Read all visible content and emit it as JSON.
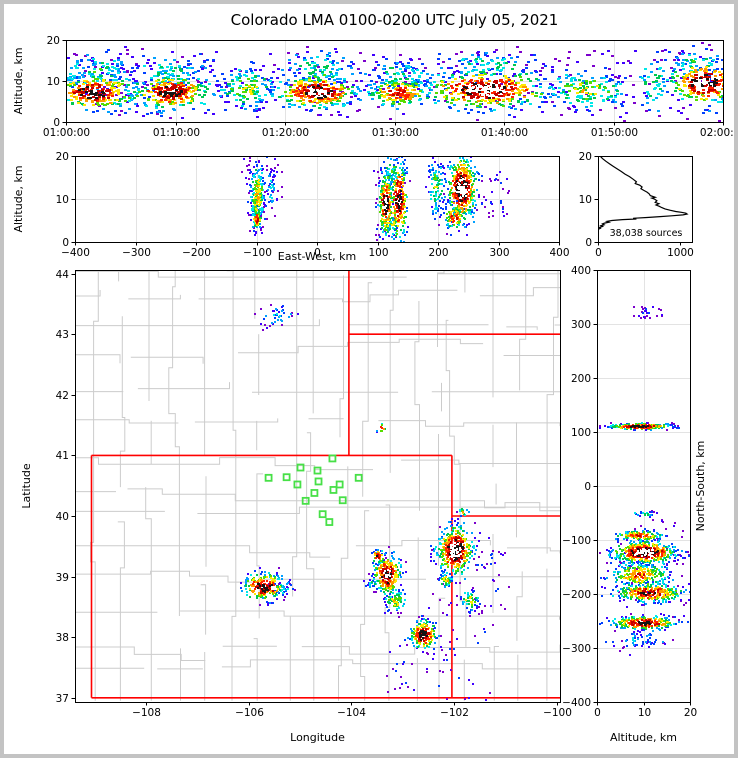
{
  "chart_data": {
    "type": "scatter",
    "title": "Colorado LMA 0100-0200 UTC July 05, 2021",
    "colormap": [
      "#7b00cc",
      "#3f00ff",
      "#0040ff",
      "#00a0ff",
      "#00e8e8",
      "#00c850",
      "#55dd00",
      "#ffe800",
      "#ff9900",
      "#ff2200",
      "#c40000",
      "#141414",
      "#ffffff"
    ],
    "cluster_format": "[center_x, center_y, sigma_x, sigma_y, n_points, peak_density]",
    "panels": {
      "time_height": {
        "type": "scatter-density",
        "ylabel": "Altitude, km",
        "x_range": [
          60,
          120
        ],
        "y_range": [
          0,
          20
        ],
        "x_tick_values": [
          60,
          70,
          80,
          90,
          100,
          110,
          120
        ],
        "x_tick_labels": [
          "01:00:00",
          "01:10:00",
          "01:20:00",
          "01:30:00",
          "01:40:00",
          "01:50:00",
          "02:00:00"
        ],
        "y_tick_values": [
          0,
          10,
          20
        ],
        "y_tick_labels": [
          "0",
          "10",
          "20"
        ],
        "clusters": [
          [
            62.5,
            7.5,
            1.9,
            2.2,
            300,
            0.95
          ],
          [
            62.5,
            12.5,
            2.0,
            2.4,
            130,
            0.4
          ],
          [
            69.5,
            7.5,
            1.8,
            2.2,
            290,
            0.92
          ],
          [
            69.5,
            12.5,
            1.9,
            2.3,
            110,
            0.4
          ],
          [
            76.5,
            8.5,
            1.4,
            2.6,
            150,
            0.55
          ],
          [
            82.8,
            7.6,
            1.8,
            2.0,
            320,
            0.97
          ],
          [
            82.8,
            13.0,
            1.9,
            2.4,
            110,
            0.42
          ],
          [
            90.3,
            7.3,
            1.5,
            1.8,
            190,
            0.8
          ],
          [
            90.3,
            12.0,
            1.6,
            2.2,
            80,
            0.4
          ],
          [
            98.3,
            8.2,
            2.9,
            2.4,
            400,
            0.97
          ],
          [
            98.5,
            14.0,
            2.6,
            2.0,
            110,
            0.4
          ],
          [
            107.5,
            8.0,
            2.0,
            2.4,
            170,
            0.55
          ],
          [
            113.5,
            9.5,
            0.9,
            3.2,
            60,
            0.45
          ],
          [
            118.2,
            9.8,
            1.6,
            2.6,
            250,
            0.97
          ],
          [
            117.5,
            14.5,
            1.4,
            1.8,
            60,
            0.4
          ],
          [
            90.0,
            9.0,
            16.0,
            4.2,
            160,
            0.13
          ]
        ]
      },
      "east_west": {
        "type": "scatter-density",
        "xlabel": "East-West, km",
        "ylabel": "Altitude, km",
        "x_range": [
          -400,
          400
        ],
        "y_range": [
          0,
          20
        ],
        "x_tick_values": [
          -400,
          -300,
          -200,
          -100,
          0,
          100,
          200,
          300,
          400
        ],
        "x_tick_labels": [
          "−400",
          "−300",
          "−200",
          "−100",
          "0",
          "100",
          "200",
          "300",
          "400"
        ],
        "y_tick_values": [
          0,
          10,
          20
        ],
        "y_tick_labels": [
          "0",
          "10",
          "20"
        ],
        "clusters": [
          [
            -100,
            11,
            6,
            4,
            240,
            0.62
          ],
          [
            -101,
            5.5,
            4,
            1.1,
            70,
            0.8
          ],
          [
            -78,
            12.5,
            5,
            2.5,
            40,
            0.3
          ],
          [
            -92,
            13,
            16,
            3.5,
            45,
            0.15
          ],
          [
            112,
            9,
            5.5,
            3.5,
            250,
            0.98
          ],
          [
            134,
            10,
            7,
            4.5,
            250,
            0.95
          ],
          [
            122,
            16.5,
            11,
            2,
            70,
            0.45
          ],
          [
            120,
            4.5,
            9,
            1,
            40,
            0.6
          ],
          [
            196,
            13,
            7,
            3.8,
            110,
            0.5
          ],
          [
            238,
            12.5,
            12,
            3.8,
            500,
            1.0
          ],
          [
            226,
            6,
            9,
            1.4,
            90,
            0.8
          ],
          [
            296,
            11,
            10,
            2.5,
            30,
            0.18
          ]
        ]
      },
      "altitude_histogram": {
        "type": "line",
        "annotation": "38,038 sources",
        "x_range": [
          0,
          1150
        ],
        "y_range": [
          0,
          20
        ],
        "x_tick_values": [
          0,
          1000
        ],
        "x_tick_labels": [
          "0",
          "1000"
        ],
        "y_tick_values": [
          0,
          10,
          20
        ],
        "y_tick_labels": [
          "0",
          "10",
          "20"
        ],
        "profile_alt_count": [
          [
            20,
            25
          ],
          [
            19.4,
            55
          ],
          [
            18.8,
            95
          ],
          [
            18.2,
            140
          ],
          [
            17.6,
            185
          ],
          [
            17,
            235
          ],
          [
            16.4,
            285
          ],
          [
            15.8,
            330
          ],
          [
            15.2,
            385
          ],
          [
            14.6,
            430
          ],
          [
            14,
            470
          ],
          [
            13.6,
            455
          ],
          [
            13.2,
            510
          ],
          [
            12.8,
            540
          ],
          [
            12.4,
            525
          ],
          [
            12,
            560
          ],
          [
            11.6,
            600
          ],
          [
            11.2,
            625
          ],
          [
            10.8,
            640
          ],
          [
            10.4,
            700
          ],
          [
            10.2,
            660
          ],
          [
            10,
            690
          ],
          [
            9.6,
            720
          ],
          [
            9.2,
            700
          ],
          [
            8.9,
            745
          ],
          [
            8.6,
            710
          ],
          [
            8.3,
            750
          ],
          [
            8,
            780
          ],
          [
            7.7,
            820
          ],
          [
            7.4,
            880
          ],
          [
            7.1,
            950
          ],
          [
            6.9,
            1020
          ],
          [
            6.7,
            1075
          ],
          [
            6.5,
            1090
          ],
          [
            6.3,
            1040
          ],
          [
            6.1,
            900
          ],
          [
            5.9,
            760
          ],
          [
            5.7,
            600
          ],
          [
            5.5,
            430
          ],
          [
            5.35,
            470
          ],
          [
            5.2,
            300
          ],
          [
            5,
            170
          ],
          [
            4.8,
            110
          ],
          [
            4.6,
            135
          ],
          [
            4.4,
            80
          ],
          [
            4.2,
            55
          ],
          [
            4,
            75
          ],
          [
            3.8,
            35
          ],
          [
            3.6,
            55
          ],
          [
            3.4,
            20
          ],
          [
            3.2,
            30
          ],
          [
            3,
            8
          ]
        ]
      },
      "map": {
        "type": "scatter-density",
        "xlabel": "Longitude",
        "ylabel": "Latitude",
        "x_range": [
          -109.37,
          -99.95
        ],
        "y_range": [
          36.93,
          44.06
        ],
        "x_tick_values": [
          -108,
          -106,
          -104,
          -102,
          -100
        ],
        "x_tick_labels": [
          "−108",
          "−106",
          "−104",
          "−102",
          "−100"
        ],
        "y_tick_values": [
          37,
          38,
          39,
          40,
          41,
          42,
          43,
          44
        ],
        "y_tick_labels": [
          "37",
          "38",
          "39",
          "40",
          "41",
          "42",
          "43",
          "44"
        ],
        "station_color": "#47e047",
        "border_color": "#ff0000",
        "county_color": "#cccccc",
        "stations": [
          [
            -104.37,
            40.95
          ],
          [
            -104.99,
            40.8
          ],
          [
            -104.66,
            40.75
          ],
          [
            -105.26,
            40.64
          ],
          [
            -105.61,
            40.63
          ],
          [
            -105.05,
            40.52
          ],
          [
            -104.64,
            40.57
          ],
          [
            -104.23,
            40.52
          ],
          [
            -103.86,
            40.63
          ],
          [
            -104.72,
            40.38
          ],
          [
            -104.35,
            40.43
          ],
          [
            -104.17,
            40.26
          ],
          [
            -104.56,
            40.03
          ],
          [
            -104.89,
            40.25
          ],
          [
            -104.43,
            39.9
          ]
        ],
        "state_borders": [
          [
            [
              -109.05,
              41
            ],
            [
              -109.05,
              37
            ]
          ],
          [
            [
              -109.05,
              41
            ],
            [
              -102.05,
              41
            ]
          ],
          [
            [
              -102.05,
              41
            ],
            [
              -102.05,
              37
            ]
          ],
          [
            [
              -109.05,
              37
            ],
            [
              -99.9,
              37
            ]
          ],
          [
            [
              -104.05,
              44.1
            ],
            [
              -104.05,
              41
            ]
          ],
          [
            [
              -104.05,
              43
            ],
            [
              -99.9,
              43
            ]
          ],
          [
            [
              -102.05,
              40
            ],
            [
              -99.9,
              40
            ]
          ]
        ],
        "clusters": [
          [
            -105.45,
            43.32,
            0.16,
            0.1,
            40,
            0.3
          ],
          [
            -103.42,
            41.47,
            0.05,
            0.035,
            12,
            0.8
          ],
          [
            -105.72,
            38.85,
            0.2,
            0.11,
            240,
            0.96
          ],
          [
            -105.35,
            38.8,
            0.12,
            0.06,
            35,
            0.35
          ],
          [
            -103.32,
            39.05,
            0.13,
            0.16,
            280,
            0.97
          ],
          [
            -103.5,
            39.35,
            0.06,
            0.06,
            50,
            0.85
          ],
          [
            -103.18,
            38.62,
            0.1,
            0.1,
            80,
            0.6
          ],
          [
            -103.6,
            38.9,
            0.06,
            0.05,
            22,
            0.4
          ],
          [
            -102.0,
            39.45,
            0.17,
            0.2,
            460,
            1.0
          ],
          [
            -101.85,
            40.08,
            0.05,
            0.04,
            18,
            0.55
          ],
          [
            -102.62,
            38.05,
            0.13,
            0.12,
            220,
            0.95
          ],
          [
            -101.72,
            38.62,
            0.1,
            0.09,
            55,
            0.55
          ],
          [
            -102.18,
            38.95,
            0.07,
            0.06,
            45,
            0.6
          ],
          [
            -101.9,
            37.85,
            0.3,
            0.4,
            45,
            0.15
          ],
          [
            -103.05,
            37.5,
            0.13,
            0.18,
            18,
            0.15
          ],
          [
            -101.35,
            38.95,
            0.18,
            0.25,
            25,
            0.18
          ],
          [
            -101.55,
            39.4,
            0.15,
            0.12,
            18,
            0.2
          ]
        ]
      },
      "north_south": {
        "type": "scatter-density",
        "xlabel": "Altitude, km",
        "ylabel": "North-South, km",
        "x_range": [
          0,
          20
        ],
        "y_range": [
          -400,
          400
        ],
        "x_tick_values": [
          0,
          10,
          20
        ],
        "x_tick_labels": [
          "0",
          "10",
          "20"
        ],
        "y_tick_values": [
          400,
          300,
          200,
          100,
          0,
          -100,
          -200,
          -300,
          -400
        ],
        "y_tick_labels": [
          "400",
          "300",
          "200",
          "100",
          "0",
          "−100",
          "−200",
          "−300",
          "−400"
        ],
        "clusters": [
          [
            9,
            112,
            3.2,
            2.6,
            230,
            0.95
          ],
          [
            11,
            323,
            1.6,
            5,
            25,
            0.16
          ],
          [
            10,
            -50,
            1.4,
            3,
            25,
            0.4
          ],
          [
            9,
            -90,
            2.6,
            4.5,
            140,
            0.8
          ],
          [
            10,
            -121,
            3.4,
            10,
            500,
            1.0
          ],
          [
            9,
            -163,
            3.2,
            11,
            240,
            0.75
          ],
          [
            11,
            -196,
            3.6,
            8,
            290,
            0.9
          ],
          [
            10,
            -252,
            3.4,
            6,
            270,
            0.93
          ],
          [
            9,
            -283,
            3.0,
            10,
            60,
            0.28
          ],
          [
            13,
            -160,
            4.0,
            45,
            90,
            0.14
          ]
        ]
      }
    }
  }
}
